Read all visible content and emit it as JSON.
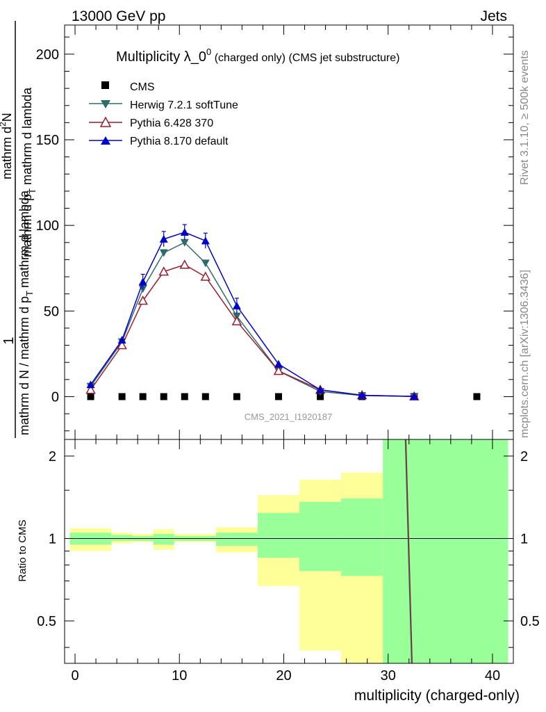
{
  "header": {
    "left": "13000 GeV pp",
    "right": "Jets",
    "side_top": "Rivet 3.1.10, ≥ 500k events",
    "side_bottom": "mcplots.cern.ch [arXiv:1306.3436]"
  },
  "chart_data": [
    {
      "type": "line",
      "title_main": "Multiplicity λ_0",
      "title_sup": "0",
      "title_rest": " (charged only) (CMS jet substructure)",
      "watermark": "CMS_2021_I1920187",
      "ylabel": {
        "num": "1",
        "den": "mathrm d N / mathrm d p",
        "den_sub": "T",
        "den_tail": "mathrm d lambda",
        "left_top": "mathrm d",
        "left_sup": "2",
        "left_n": "N",
        "left_mid": "mathrm d p",
        "left_sub": "T",
        "left_tail": " mathrm d lambda"
      },
      "xlim": [
        -1,
        42
      ],
      "ylim": [
        -25,
        217
      ],
      "yticks": [
        0,
        50,
        100,
        150,
        200
      ],
      "ytick_labels": [
        "0",
        "50",
        "100",
        "150",
        "200"
      ],
      "series": [
        {
          "name": "CMS",
          "color": "#000000",
          "marker": "square",
          "x": [
            1.5,
            4.5,
            6.5,
            8.5,
            10.5,
            12.5,
            15.5,
            19.5,
            23.5,
            27.5,
            32.5,
            38.5
          ],
          "y": [
            0,
            0,
            0,
            0,
            0,
            0,
            0,
            0,
            0,
            0,
            0,
            0
          ]
        },
        {
          "name": "Herwig 7.2.1 softTune",
          "color": "#2e6b6b",
          "marker": "triangle-down",
          "x": [
            1.5,
            4.5,
            6.5,
            8.5,
            10.5,
            12.5,
            15.5,
            19.5,
            23.5,
            27.5,
            32.5
          ],
          "y": [
            6,
            32,
            63,
            84,
            90,
            78,
            47,
            15,
            3,
            0.6,
            0.1
          ]
        },
        {
          "name": "Pythia 6.428 370",
          "color": "#9b1c2e",
          "marker": "triangle-up-open",
          "x": [
            1.5,
            4.5,
            6.5,
            8.5,
            10.5,
            12.5,
            15.5,
            19.5,
            23.5,
            27.5,
            32.5
          ],
          "y": [
            4,
            30,
            56,
            73,
            77,
            70,
            44,
            15,
            4,
            0.8,
            0.1
          ]
        },
        {
          "name": "Pythia 8.170 default",
          "color": "#0000cc",
          "marker": "triangle-up",
          "x": [
            1.5,
            4.5,
            6.5,
            8.5,
            10.5,
            12.5,
            15.5,
            19.5,
            23.5,
            27.5,
            32.5
          ],
          "y": [
            7,
            33,
            67,
            92,
            96,
            91,
            53,
            19,
            4,
            0.8,
            0.1
          ]
        }
      ]
    },
    {
      "type": "area",
      "ylabel": "Ratio to CMS",
      "xlabel": "multiplicity (charged-only)",
      "xlim": [
        -1,
        42
      ],
      "ylim": [
        0.35,
        2.3
      ],
      "yticks": [
        0.5,
        1,
        2
      ],
      "ytick_labels": [
        "0.5",
        "1",
        "2"
      ],
      "xticks": [
        0,
        10,
        20,
        30,
        40
      ],
      "xtick_labels": [
        "0",
        "10",
        "20",
        "30",
        "40"
      ],
      "bands": [
        {
          "x0": -0.5,
          "x1": 3.5,
          "y_lo": 0.9,
          "y_hi": 1.09,
          "g_lo": 0.95,
          "g_hi": 1.05
        },
        {
          "x0": 3.5,
          "x1": 5.5,
          "y_lo": 0.96,
          "y_hi": 1.05,
          "g_lo": 0.98,
          "g_hi": 1.03
        },
        {
          "x0": 5.5,
          "x1": 7.5,
          "y_lo": 0.97,
          "y_hi": 1.04,
          "g_lo": 0.98,
          "g_hi": 1.02
        },
        {
          "x0": 7.5,
          "x1": 9.5,
          "y_lo": 0.91,
          "y_hi": 1.08,
          "g_lo": 0.95,
          "g_hi": 1.04
        },
        {
          "x0": 9.5,
          "x1": 13.5,
          "y_lo": 0.97,
          "y_hi": 1.04,
          "g_lo": 0.98,
          "g_hi": 1.02
        },
        {
          "x0": 13.5,
          "x1": 17.5,
          "y_lo": 0.89,
          "y_hi": 1.1,
          "g_lo": 0.94,
          "g_hi": 1.05
        },
        {
          "x0": 17.5,
          "x1": 21.5,
          "y_lo": 0.67,
          "y_hi": 1.44,
          "g_lo": 0.85,
          "g_hi": 1.24
        },
        {
          "x0": 21.5,
          "x1": 25.5,
          "y_lo": 0.39,
          "y_hi": 1.64,
          "g_lo": 0.76,
          "g_hi": 1.36
        },
        {
          "x0": 25.5,
          "x1": 29.5,
          "y_lo": 0.35,
          "y_hi": 1.74,
          "g_lo": 0.73,
          "g_hi": 1.4
        },
        {
          "x0": 29.5,
          "x1": 41.5,
          "y_lo": 0.35,
          "y_hi": 2.3,
          "g_lo": 0.35,
          "g_hi": 2.3
        }
      ],
      "ratio_line": {
        "x": [
          31.7,
          32.3
        ],
        "y": [
          2.3,
          0.35
        ],
        "color": "#9b1c2e"
      },
      "reference": 1
    }
  ]
}
